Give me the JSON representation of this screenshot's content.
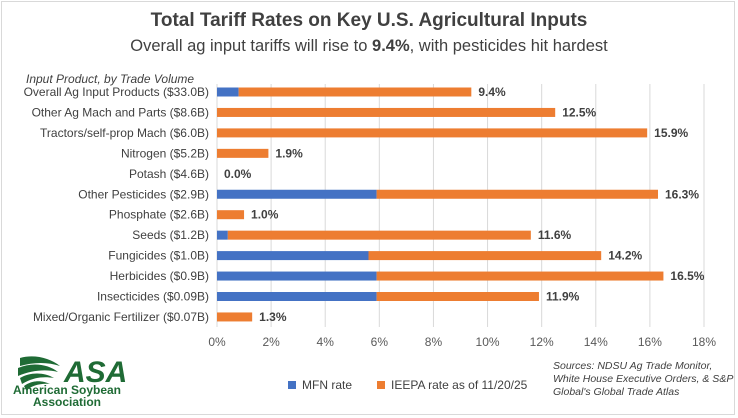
{
  "title": "Total Tariff Rates on Key U.S. Agricultural Inputs",
  "subtitle": {
    "pre": "Overall ag input tariffs will rise to ",
    "bold": "9.4%",
    "post": ", with pesticides hit hardest"
  },
  "legend": {
    "mfn": "MFN rate",
    "ieepa": "IEEPA rate as of 11/20/25"
  },
  "source": "Sources: NDSU Ag Trade Monitor, White House Executive Orders, & S&P Global's Global Trade Atlas",
  "logo": {
    "mark": "ASA",
    "line1": "American Soybean",
    "line2": "Association"
  },
  "colors": {
    "mfn": "#4472c4",
    "ieepa": "#ed7d31",
    "grid": "#d9d9d9",
    "logo_green": "#1f6b35"
  },
  "chart_data": {
    "type": "bar",
    "orientation": "horizontal",
    "stacked": true,
    "title": "Total Tariff Rates on Key U.S. Agricultural Inputs",
    "ylabel": "Input Product, by Trade Volume",
    "xlabel": "",
    "xlim": [
      0,
      18
    ],
    "x_ticks": [
      "0%",
      "2%",
      "4%",
      "6%",
      "8%",
      "10%",
      "12%",
      "14%",
      "16%",
      "18%"
    ],
    "grid": true,
    "legend_position": "bottom",
    "categories": [
      "Overall Ag Input Products ($33.0B)",
      "Other Ag Mach and Parts ($8.6B)",
      "Tractors/self-prop Mach ($6.0B)",
      "Nitrogen ($5.2B)",
      "Potash ($4.6B)",
      "Other Pesticides ($2.9B)",
      "Phosphate ($2.6B)",
      "Seeds ($1.2B)",
      "Fungicides ($1.0B)",
      "Herbicides ($0.9B)",
      "Insecticides ($0.09B)",
      "Mixed/Organic Fertilizer ($0.07B)"
    ],
    "series": [
      {
        "name": "MFN rate",
        "values": [
          0.8,
          0,
          0,
          0,
          0,
          5.9,
          0,
          0.4,
          5.6,
          5.9,
          5.9,
          0
        ]
      },
      {
        "name": "IEEPA rate as of 11/20/25",
        "values": [
          8.6,
          12.5,
          15.9,
          1.9,
          0,
          10.4,
          1.0,
          11.2,
          8.6,
          10.6,
          6.0,
          1.3
        ]
      }
    ],
    "totals": [
      "9.4%",
      "12.5%",
      "15.9%",
      "1.9%",
      "0.0%",
      "16.3%",
      "1.0%",
      "11.6%",
      "14.2%",
      "16.5%",
      "11.9%",
      "1.3%"
    ]
  }
}
